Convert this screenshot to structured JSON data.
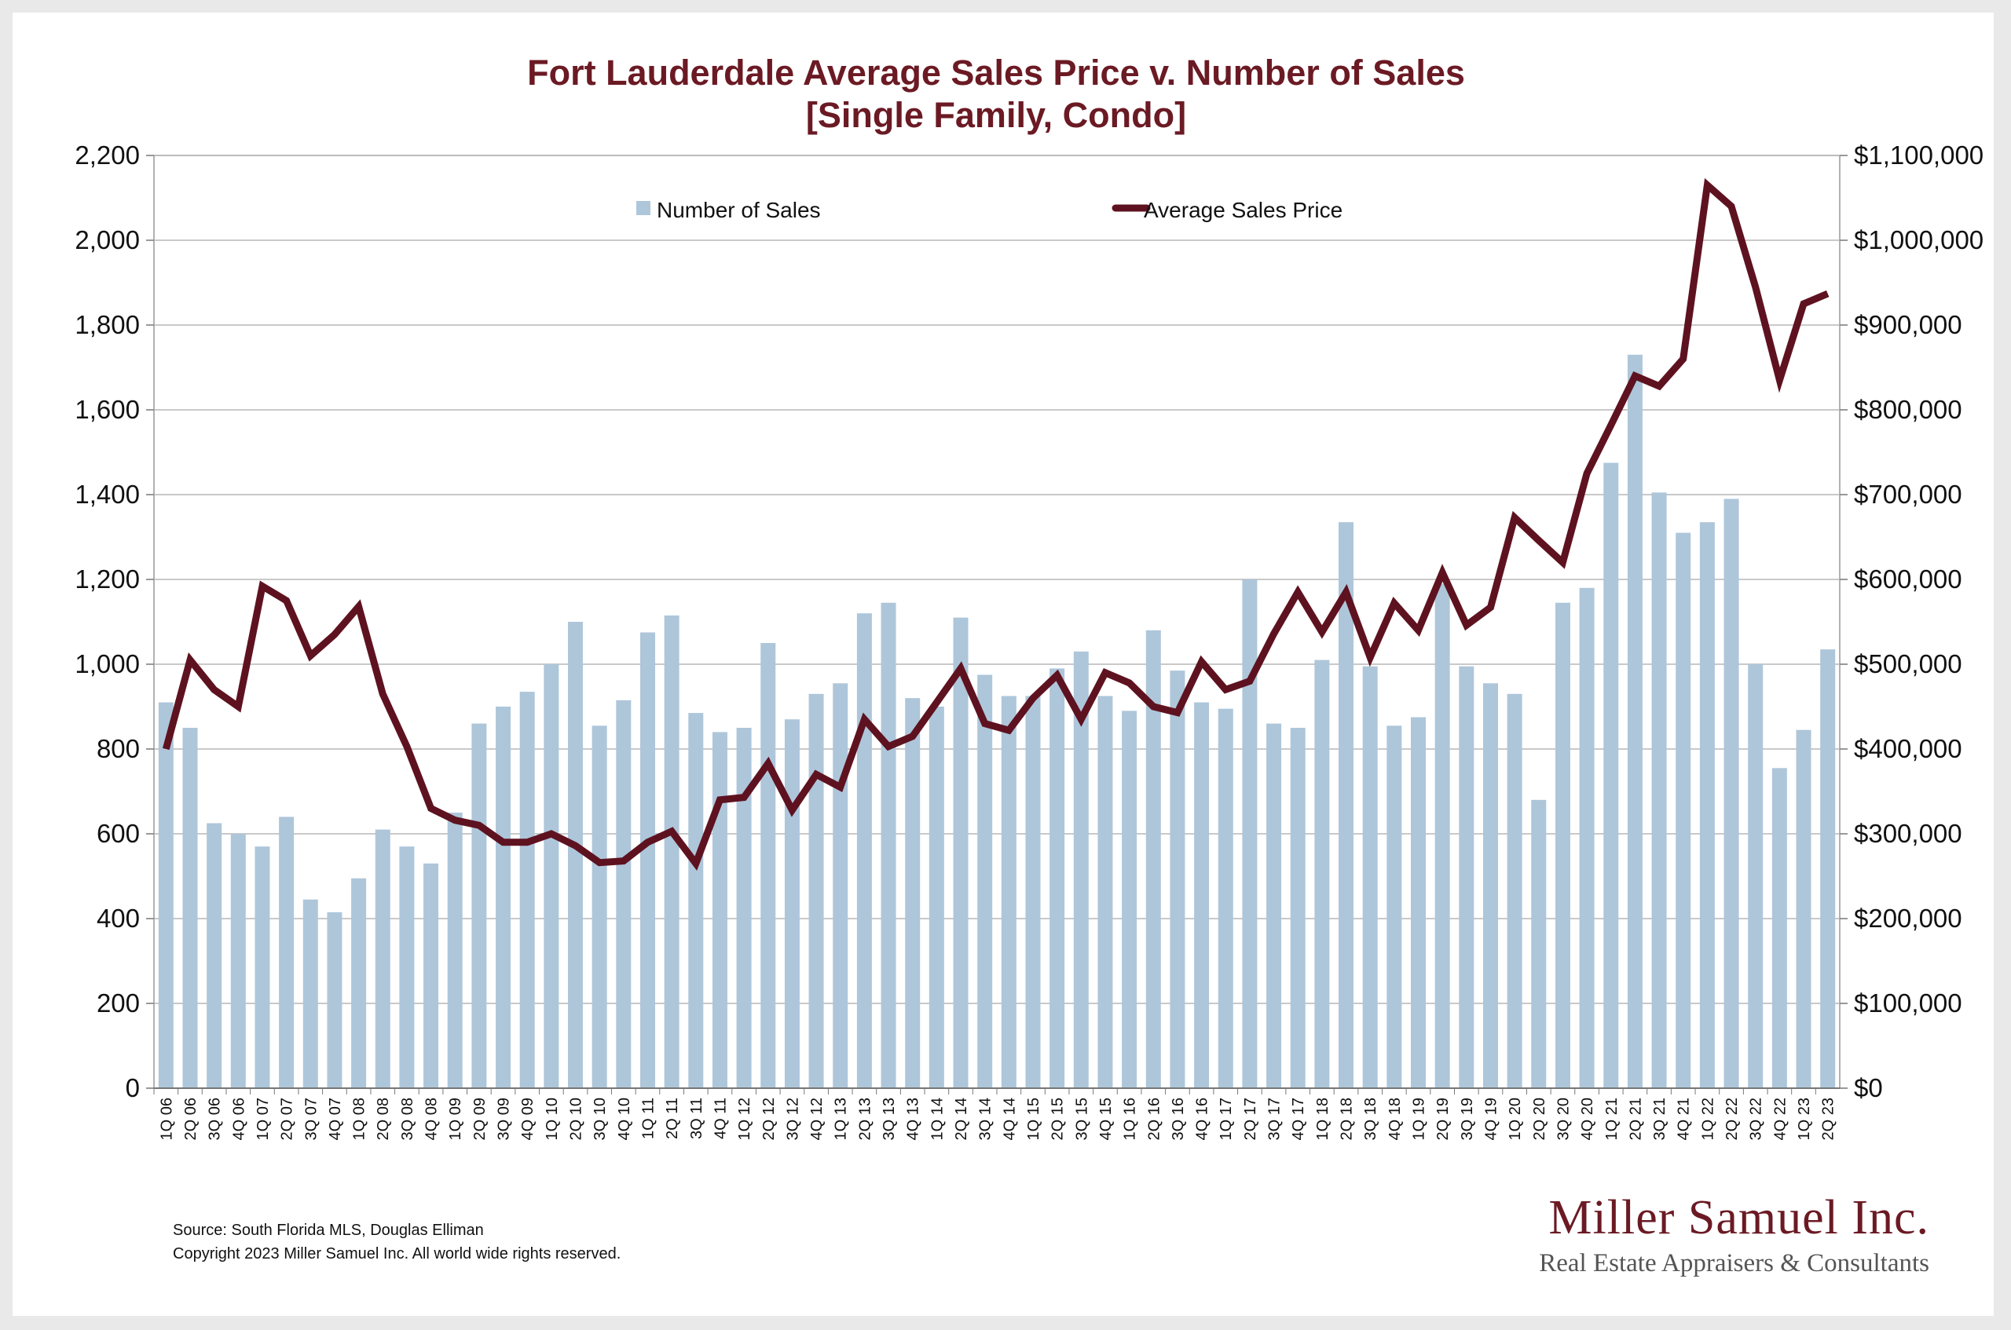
{
  "colors": {
    "bar": "#aec6da",
    "line": "#5e1220",
    "title": "#6b1a24",
    "grid": "#b7b7b7",
    "brand": "#6b1a24"
  },
  "chart_data": {
    "type": "bar",
    "title": "Fort Lauderdale Average Sales Price v. Number of Sales",
    "subtitle": "[Single Family, Condo]",
    "xlabel": "",
    "ylabel": "",
    "ylim": [
      0,
      2200
    ],
    "y2lim": [
      0,
      1100000
    ],
    "y_ticks": [
      "0",
      "200",
      "400",
      "600",
      "800",
      "1,000",
      "1,200",
      "1,400",
      "1,600",
      "1,800",
      "2,000",
      "2,200"
    ],
    "y2_ticks": [
      "$0",
      "$100,000",
      "$200,000",
      "$300,000",
      "$400,000",
      "$500,000",
      "$600,000",
      "$700,000",
      "$800,000",
      "$900,000",
      "$1,000,000",
      "$1,100,000"
    ],
    "grid": true,
    "legend_position": "top",
    "categories": [
      "1Q 06",
      "2Q 06",
      "3Q 06",
      "4Q 06",
      "1Q 07",
      "2Q 07",
      "3Q 07",
      "4Q 07",
      "1Q 08",
      "2Q 08",
      "3Q 08",
      "4Q 08",
      "1Q 09",
      "2Q 09",
      "3Q 09",
      "4Q 09",
      "1Q 10",
      "2Q 10",
      "3Q 10",
      "4Q 10",
      "1Q 11",
      "2Q 11",
      "3Q 11",
      "4Q 11",
      "1Q 12",
      "2Q 12",
      "3Q 12",
      "4Q 12",
      "1Q 13",
      "2Q 13",
      "3Q 13",
      "4Q 13",
      "1Q 14",
      "2Q 14",
      "3Q 14",
      "4Q 14",
      "1Q 15",
      "2Q 15",
      "3Q 15",
      "4Q 15",
      "1Q 16",
      "2Q 16",
      "3Q 16",
      "4Q 16",
      "1Q 17",
      "2Q 17",
      "3Q 17",
      "4Q 17",
      "1Q 18",
      "2Q 18",
      "3Q 18",
      "4Q 18",
      "1Q 19",
      "2Q 19",
      "3Q 19",
      "4Q 19",
      "1Q 20",
      "2Q 20",
      "3Q 20",
      "4Q 20",
      "1Q 21",
      "2Q 21",
      "3Q 21",
      "4Q 21",
      "1Q 22",
      "2Q 22",
      "3Q 22",
      "4Q 22",
      "1Q 23",
      "2Q 23"
    ],
    "series": [
      {
        "name": "Number of Sales",
        "type": "bar",
        "axis": "left",
        "values": [
          910,
          850,
          625,
          600,
          570,
          640,
          445,
          415,
          495,
          610,
          570,
          530,
          650,
          860,
          900,
          935,
          1000,
          1100,
          855,
          915,
          1075,
          1115,
          885,
          840,
          850,
          1050,
          870,
          930,
          955,
          1120,
          1145,
          920,
          900,
          1110,
          975,
          925,
          925,
          990,
          1030,
          925,
          890,
          1080,
          985,
          910,
          895,
          1200,
          860,
          850,
          1010,
          1335,
          995,
          855,
          875,
          1190,
          995,
          955,
          930,
          680,
          1145,
          1180,
          1475,
          1730,
          1405,
          1310,
          1335,
          1390,
          1000,
          755,
          845,
          1035
        ]
      },
      {
        "name": "Average Sales Price",
        "type": "line",
        "axis": "right",
        "values": [
          400000,
          505000,
          470000,
          450000,
          592000,
          575000,
          510000,
          535000,
          568000,
          465000,
          403000,
          330000,
          316000,
          310000,
          290000,
          290000,
          300000,
          286000,
          266000,
          268000,
          290000,
          303000,
          265000,
          340000,
          343000,
          383000,
          328000,
          370000,
          355000,
          435000,
          403000,
          415000,
          455000,
          495000,
          430000,
          422000,
          460000,
          487000,
          435000,
          490000,
          478000,
          450000,
          443000,
          503000,
          470000,
          480000,
          536000,
          585000,
          538000,
          585000,
          508000,
          572000,
          540000,
          608000,
          546000,
          567000,
          673000,
          646000,
          620000,
          725000,
          782000,
          840000,
          828000,
          860000,
          1065000,
          1040000,
          945000,
          835000,
          925000,
          937000
        ]
      }
    ]
  },
  "footer": {
    "source": "Source: South Florida MLS, Douglas Elliman",
    "copyright": "Copyright 2023 Miller Samuel Inc.  All world wide rights reserved."
  },
  "brand": {
    "name": "Miller Samuel Inc.",
    "tagline": "Real Estate Appraisers & Consultants"
  }
}
